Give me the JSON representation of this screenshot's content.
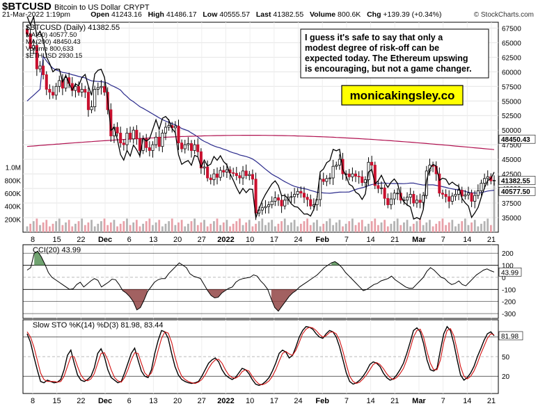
{
  "header": {
    "symbol": "$BTCUSD",
    "name": "Bitcoin to US Dollar",
    "exchange": "CRYPT",
    "datetime": "21-Mar-2022 1:19pm",
    "open_label": "Open",
    "open": "41243.16",
    "high_label": "High",
    "high": "41486.17",
    "low_label": "Low",
    "low": "40555.57",
    "last_label": "Last",
    "last": "41382.55",
    "volume_label": "Volume",
    "volume": "800.6K",
    "chg_label": "Chg",
    "chg": "+139.39 (+0.34%)",
    "watermark": "© StockCharts.com"
  },
  "annotation": {
    "text": [
      "I guess it's safe to say that only a",
      "modest degree of risk-off can be",
      "expected today. The Ethereum upswing",
      "is encouraging, but not a game changer."
    ],
    "website": "monicakingsley.co"
  },
  "colors": {
    "up": "#ffffff",
    "down": "#c8102e",
    "ma50": "#2b2b8c",
    "ma200": "#b0104f",
    "eth": "#000000",
    "volume": "#b3b3b3",
    "volume_down": "#e8a0a8",
    "cci_pos": "#4c8b4c",
    "cci_neg": "#8b3a3a",
    "sto_k": "#000000",
    "sto_d": "#d11010",
    "label_box": "#ffff00"
  },
  "chart_data": [
    {
      "type": "candlestick",
      "title": "$BTCUSD (Daily) 41382.55",
      "legend": [
        {
          "name": "MA(50) 40577.50"
        },
        {
          "name": "MA(200) 48450.43"
        },
        {
          "name": "Volume 800,633"
        },
        {
          "name": "$ETHUSD 2930.15"
        }
      ],
      "x_tick_labels": [
        "8",
        "15",
        "22",
        "Dec",
        "6",
        "13",
        "20",
        "27",
        "2022",
        "10",
        "17",
        "24",
        "Feb",
        "7",
        "14",
        "21",
        "Mar",
        "7",
        "14",
        "21"
      ],
      "price_ticks": [
        "67500",
        "65000",
        "62500",
        "60000",
        "57500",
        "55000",
        "52500",
        "50000",
        "47500",
        "45000",
        "42500",
        "40000",
        "37500",
        "35000"
      ],
      "volume_ticks": [
        "1.0M",
        "800K",
        "600K",
        "400K",
        "200K"
      ],
      "ylim": [
        32500,
        68500
      ],
      "volume_ylim": [
        0,
        1200000
      ],
      "last_price_label": "41382.55",
      "ma50_label": "40577.50",
      "ma200_label": "48450.43",
      "close": [
        66500,
        64000,
        64500,
        60500,
        61000,
        59500,
        57000,
        56500,
        56000,
        57500,
        58500,
        57200,
        59000,
        58000,
        56800,
        57500,
        56500,
        57000,
        56500,
        53500,
        54000,
        57000,
        57300,
        57500,
        56500,
        53500,
        49000,
        50500,
        49500,
        47800,
        47500,
        49500,
        48500,
        50000,
        48500,
        46500,
        48500,
        47000,
        46500,
        47500,
        48800,
        47200,
        49500,
        50500,
        50800,
        50400,
        50700,
        47800,
        46800,
        47500,
        47700,
        46500,
        47500,
        46300,
        43500,
        43700,
        41800,
        41500,
        42500,
        41900,
        43100,
        42800,
        43200,
        42700,
        42600,
        42200,
        41800,
        43000,
        42200,
        42400,
        41600,
        35800,
        36300,
        36700,
        36900,
        37200,
        37800,
        38400,
        38000,
        37000,
        38000,
        38500,
        38600,
        39000,
        39500,
        39200,
        38500,
        38100,
        37000,
        37200,
        38100,
        41600,
        41200,
        41700,
        41800,
        43800,
        44000,
        45000,
        42500,
        42500,
        42000,
        42500,
        42100,
        42000,
        41000,
        41500,
        44500,
        44000,
        40500,
        40000,
        40100,
        38300,
        37200,
        38200,
        39200,
        39200,
        38000,
        38000,
        38500,
        39000,
        37500,
        38000,
        37600,
        38800,
        43000,
        44000,
        43800,
        42500,
        39200,
        39000,
        38600,
        37800,
        38700,
        39000,
        39700,
        38700,
        38900,
        39200,
        37800,
        38800,
        39600,
        40900,
        41700,
        42000,
        41300,
        41400
      ]
    },
    {
      "type": "line",
      "title": "CCI(20) 43.99",
      "y_ticks": [
        "200",
        "100",
        "0",
        "-100",
        "-200",
        "-300"
      ],
      "ylim": [
        -340,
        270
      ],
      "last_label": "43.99",
      "values": [
        60,
        80,
        200,
        215,
        170,
        110,
        40,
        0,
        -20,
        -40,
        -60,
        -80,
        -100,
        -95,
        -60,
        -40,
        -80,
        -55,
        -30,
        -10,
        -25,
        -80,
        -60,
        -40,
        -15,
        -20,
        -60,
        -110,
        -130,
        -160,
        -200,
        -270,
        -250,
        -190,
        -120,
        -80,
        -40,
        -20,
        -10,
        -10,
        30,
        60,
        90,
        120,
        100,
        80,
        30,
        10,
        0,
        -10,
        -60,
        -110,
        -150,
        -170,
        -165,
        -130,
        -110,
        -90,
        -80,
        -40,
        -20,
        -10,
        -5,
        0,
        20,
        10,
        -30,
        -60,
        -100,
        -180,
        -250,
        -280,
        -240,
        -200,
        -160,
        -130,
        -110,
        -80,
        -60,
        -40,
        -20,
        0,
        20,
        50,
        80,
        100,
        120,
        130,
        110,
        80,
        40,
        10,
        -20,
        -50,
        -80,
        -110,
        -100,
        -80,
        -60,
        -50,
        -30,
        -20,
        -10,
        10,
        -20,
        -40,
        -60,
        -80,
        -90,
        -90,
        -60,
        -30,
        0,
        50,
        80,
        60,
        30,
        0,
        -10,
        -40,
        -60,
        -50,
        -30,
        -60,
        -70,
        -40,
        -10,
        20,
        40,
        60,
        70,
        55,
        43.99
      ]
    },
    {
      "type": "line",
      "title": "Slow STO %K(14) %D(3) 81.98, 83.44",
      "y_ticks": [
        "50",
        "20"
      ],
      "ylim": [
        0,
        100
      ],
      "last_label": "81.98",
      "series": [
        {
          "name": "%K(14)",
          "values": [
            85,
            72,
            50,
            30,
            12,
            10,
            14,
            12,
            10,
            11,
            15,
            30,
            52,
            60,
            40,
            22,
            14,
            12,
            15,
            20,
            33,
            55,
            62,
            50,
            30,
            18,
            14,
            10,
            12,
            25,
            40,
            55,
            63,
            45,
            28,
            20,
            18,
            30,
            55,
            75,
            90,
            88,
            78,
            55,
            35,
            22,
            15,
            12,
            10,
            9,
            10,
            12,
            20,
            30,
            40,
            45,
            48,
            42,
            30,
            22,
            18,
            15,
            18,
            25,
            32,
            30,
            24,
            15,
            8,
            6,
            8,
            12,
            18,
            28,
            40,
            55,
            60,
            57,
            48,
            52,
            65,
            80,
            90,
            96,
            95,
            92,
            85,
            80,
            78,
            85,
            90,
            88,
            80,
            65,
            45,
            25,
            12,
            8,
            10,
            14,
            20,
            28,
            38,
            42,
            40,
            35,
            25,
            18,
            14,
            16,
            22,
            30,
            40,
            55,
            72,
            90,
            94,
            88,
            70,
            45,
            30,
            28,
            32,
            60,
            85,
            96,
            90,
            70,
            45,
            22,
            14,
            18,
            25,
            35,
            50,
            62,
            75,
            85,
            88,
            81.98
          ]
        },
        {
          "name": "%D(3)",
          "values": [
            88,
            80,
            65,
            45,
            25,
            15,
            12,
            12,
            12,
            11,
            12,
            20,
            35,
            50,
            50,
            35,
            22,
            15,
            13,
            16,
            24,
            40,
            55,
            56,
            45,
            30,
            18,
            13,
            11,
            18,
            30,
            45,
            56,
            55,
            40,
            25,
            20,
            25,
            40,
            60,
            78,
            88,
            86,
            72,
            50,
            32,
            20,
            15,
            12,
            10,
            9,
            11,
            15,
            22,
            32,
            40,
            45,
            46,
            40,
            30,
            22,
            18,
            17,
            20,
            27,
            30,
            28,
            20,
            13,
            8,
            7,
            9,
            13,
            20,
            30,
            43,
            55,
            58,
            54,
            52,
            60,
            72,
            85,
            92,
            95,
            94,
            90,
            84,
            80,
            82,
            87,
            88,
            85,
            75,
            58,
            38,
            20,
            12,
            9,
            11,
            16,
            22,
            30,
            38,
            41,
            38,
            32,
            24,
            18,
            15,
            18,
            24,
            32,
            45,
            62,
            80,
            90,
            92,
            80,
            58,
            40,
            30,
            30,
            45,
            72,
            90,
            93,
            82,
            60,
            35,
            20,
            16,
            20,
            28,
            40,
            54,
            66,
            78,
            85,
            83.44
          ]
        }
      ]
    }
  ]
}
